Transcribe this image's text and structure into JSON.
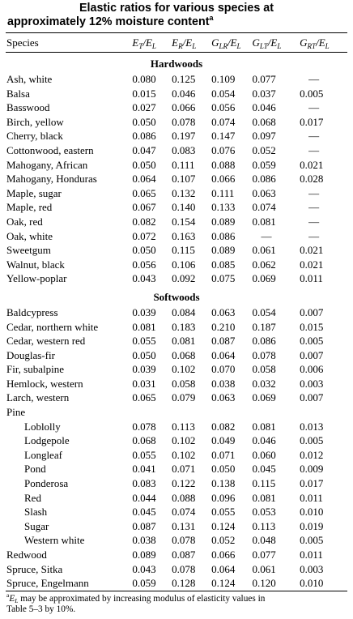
{
  "title": {
    "line1": "Elastic ratios for various species at",
    "line2": "approximately 12% moisture content",
    "marker": "a"
  },
  "columns": {
    "species": "Species",
    "ratios": [
      {
        "n": "E",
        "ns": "T",
        "d": "E",
        "ds": "L"
      },
      {
        "n": "E",
        "ns": "R",
        "d": "E",
        "ds": "L"
      },
      {
        "n": "G",
        "ns": "LR",
        "d": "E",
        "ds": "L"
      },
      {
        "n": "G",
        "ns": "LT",
        "d": "E",
        "ds": "L"
      },
      {
        "n": "G",
        "ns": "RT",
        "d": "E",
        "ds": "L"
      }
    ]
  },
  "sections": [
    {
      "heading": "Hardwoods",
      "rows": [
        {
          "species": "Ash, white",
          "values": [
            "0.080",
            "0.125",
            "0.109",
            "0.077",
            "—"
          ]
        },
        {
          "species": "Balsa",
          "values": [
            "0.015",
            "0.046",
            "0.054",
            "0.037",
            "0.005"
          ]
        },
        {
          "species": "Basswood",
          "values": [
            "0.027",
            "0.066",
            "0.056",
            "0.046",
            "—"
          ]
        },
        {
          "species": "Birch, yellow",
          "values": [
            "0.050",
            "0.078",
            "0.074",
            "0.068",
            "0.017"
          ]
        },
        {
          "species": "Cherry, black",
          "values": [
            "0.086",
            "0.197",
            "0.147",
            "0.097",
            "—"
          ]
        },
        {
          "species": "Cottonwood, eastern",
          "values": [
            "0.047",
            "0.083",
            "0.076",
            "0.052",
            "—"
          ]
        },
        {
          "species": "Mahogany, African",
          "values": [
            "0.050",
            "0.111",
            "0.088",
            "0.059",
            "0.021"
          ]
        },
        {
          "species": "Mahogany, Honduras",
          "values": [
            "0.064",
            "0.107",
            "0.066",
            "0.086",
            "0.028"
          ]
        },
        {
          "species": "Maple, sugar",
          "values": [
            "0.065",
            "0.132",
            "0.111",
            "0.063",
            "—"
          ]
        },
        {
          "species": "Maple, red",
          "values": [
            "0.067",
            "0.140",
            "0.133",
            "0.074",
            "—"
          ]
        },
        {
          "species": "Oak, red",
          "values": [
            "0.082",
            "0.154",
            "0.089",
            "0.081",
            "—"
          ]
        },
        {
          "species": "Oak, white",
          "values": [
            "0.072",
            "0.163",
            "0.086",
            "—",
            "—"
          ]
        },
        {
          "species": "Sweetgum",
          "values": [
            "0.050",
            "0.115",
            "0.089",
            "0.061",
            "0.021"
          ]
        },
        {
          "species": "Walnut, black",
          "values": [
            "0.056",
            "0.106",
            "0.085",
            "0.062",
            "0.021"
          ]
        },
        {
          "species": "Yellow-poplar",
          "values": [
            "0.043",
            "0.092",
            "0.075",
            "0.069",
            "0.011"
          ]
        }
      ]
    },
    {
      "heading": "Softwoods",
      "rows": [
        {
          "species": "Baldcypress",
          "values": [
            "0.039",
            "0.084",
            "0.063",
            "0.054",
            "0.007"
          ]
        },
        {
          "species": "Cedar, northern white",
          "values": [
            "0.081",
            "0.183",
            "0.210",
            "0.187",
            "0.015"
          ]
        },
        {
          "species": "Cedar, western red",
          "values": [
            "0.055",
            "0.081",
            "0.087",
            "0.086",
            "0.005"
          ]
        },
        {
          "species": "Douglas-fir",
          "values": [
            "0.050",
            "0.068",
            "0.064",
            "0.078",
            "0.007"
          ]
        },
        {
          "species": "Fir, subalpine",
          "values": [
            "0.039",
            "0.102",
            "0.070",
            "0.058",
            "0.006"
          ]
        },
        {
          "species": "Hemlock, western",
          "values": [
            "0.031",
            "0.058",
            "0.038",
            "0.032",
            "0.003"
          ]
        },
        {
          "species": "Larch, western",
          "values": [
            "0.065",
            "0.079",
            "0.063",
            "0.069",
            "0.007"
          ]
        },
        {
          "species": "Pine",
          "values": [
            "",
            "",
            "",
            "",
            ""
          ]
        },
        {
          "species": "Loblolly",
          "indent": true,
          "values": [
            "0.078",
            "0.113",
            "0.082",
            "0.081",
            "0.013"
          ]
        },
        {
          "species": "Lodgepole",
          "indent": true,
          "values": [
            "0.068",
            "0.102",
            "0.049",
            "0.046",
            "0.005"
          ]
        },
        {
          "species": "Longleaf",
          "indent": true,
          "values": [
            "0.055",
            "0.102",
            "0.071",
            "0.060",
            "0.012"
          ]
        },
        {
          "species": "Pond",
          "indent": true,
          "values": [
            "0.041",
            "0.071",
            "0.050",
            "0.045",
            "0.009"
          ]
        },
        {
          "species": "Ponderosa",
          "indent": true,
          "values": [
            "0.083",
            "0.122",
            "0.138",
            "0.115",
            "0.017"
          ]
        },
        {
          "species": "Red",
          "indent": true,
          "values": [
            "0.044",
            "0.088",
            "0.096",
            "0.081",
            "0.011"
          ]
        },
        {
          "species": "Slash",
          "indent": true,
          "values": [
            "0.045",
            "0.074",
            "0.055",
            "0.053",
            "0.010"
          ]
        },
        {
          "species": "Sugar",
          "indent": true,
          "values": [
            "0.087",
            "0.131",
            "0.124",
            "0.113",
            "0.019"
          ]
        },
        {
          "species": "Western white",
          "indent": true,
          "values": [
            "0.038",
            "0.078",
            "0.052",
            "0.048",
            "0.005"
          ]
        },
        {
          "species": "Redwood",
          "values": [
            "0.089",
            "0.087",
            "0.066",
            "0.077",
            "0.011"
          ]
        },
        {
          "species": "Spruce, Sitka",
          "values": [
            "0.043",
            "0.078",
            "0.064",
            "0.061",
            "0.003"
          ]
        },
        {
          "species": "Spruce, Engelmann",
          "values": [
            "0.059",
            "0.128",
            "0.124",
            "0.120",
            "0.010"
          ]
        }
      ]
    }
  ],
  "footnote": {
    "marker": "a",
    "symbol": "E",
    "symbol_sub": "L",
    "line1": " may be approximated by increasing modulus of elasticity values in",
    "line2": "Table 5–3 by 10%."
  }
}
